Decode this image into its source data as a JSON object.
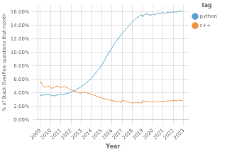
{
  "chart_data": {
    "type": "line",
    "xlabel": "Year",
    "ylabel": "% of Stack Overflow questions that month",
    "legend_title": "Tag",
    "legend": "right",
    "grid": true,
    "xlim": [
      2008.7,
      2023.5
    ],
    "xticks": [
      2009,
      2010,
      2011,
      2012,
      2013,
      2014,
      2015,
      2016,
      2017,
      2018,
      2019,
      2020,
      2021,
      2022,
      2023
    ],
    "ylim": [
      0.0,
      0.17
    ],
    "yticks": [
      {
        "value": 0.0,
        "label": "0.00%"
      },
      {
        "value": 0.02,
        "label": "2.00%"
      },
      {
        "value": 0.04,
        "label": "4.00%"
      },
      {
        "value": 0.06,
        "label": "6.00%"
      },
      {
        "value": 0.08,
        "label": "8.00%"
      },
      {
        "value": 0.1,
        "label": "10.00%"
      },
      {
        "value": 0.12,
        "label": "12.00%"
      },
      {
        "value": 0.14,
        "label": "14.00%"
      },
      {
        "value": 0.16,
        "label": "16.00%"
      }
    ],
    "x": [
      2009,
      2009.0833333333333,
      2009.1666666666667,
      2009.25,
      2009.3333333333333,
      2009.4166666666667,
      2009.5,
      2009.5833333333333,
      2009.6666666666667,
      2009.75,
      2009.8333333333333,
      2009.9166666666667,
      2010,
      2010.0833333333333,
      2010.1666666666667,
      2010.25,
      2010.3333333333333,
      2010.4166666666667,
      2010.5,
      2010.5833333333333,
      2010.6666666666667,
      2010.75,
      2010.8333333333333,
      2010.9166666666667,
      2011,
      2011.0833333333333,
      2011.1666666666667,
      2011.25,
      2011.3333333333333,
      2011.4166666666667,
      2011.5,
      2011.5833333333333,
      2011.6666666666667,
      2011.75,
      2011.8333333333333,
      2011.9166666666667,
      2012,
      2012.0833333333333,
      2012.1666666666667,
      2012.25,
      2012.3333333333333,
      2012.4166666666667,
      2012.5,
      2012.5833333333333,
      2012.6666666666667,
      2012.75,
      2012.8333333333333,
      2012.9166666666667,
      2013,
      2013.0833333333333,
      2013.1666666666667,
      2013.25,
      2013.3333333333333,
      2013.4166666666667,
      2013.5,
      2013.5833333333333,
      2013.6666666666667,
      2013.75,
      2013.8333333333333,
      2013.9166666666667,
      2014,
      2014.0833333333333,
      2014.1666666666667,
      2014.25,
      2014.3333333333333,
      2014.4166666666667,
      2014.5,
      2014.5833333333333,
      2014.6666666666667,
      2014.75,
      2014.8333333333333,
      2014.9166666666667,
      2015,
      2015.0833333333333,
      2015.1666666666667,
      2015.25,
      2015.3333333333333,
      2015.4166666666667,
      2015.5,
      2015.5833333333333,
      2015.6666666666667,
      2015.75,
      2015.8333333333333,
      2015.9166666666667,
      2016,
      2016.0833333333333,
      2016.1666666666667,
      2016.25,
      2016.3333333333333,
      2016.4166666666667,
      2016.5,
      2016.5833333333333,
      2016.6666666666667,
      2016.75,
      2016.8333333333333,
      2016.9166666666667,
      2017,
      2017.0833333333333,
      2017.1666666666667,
      2017.25,
      2017.3333333333333,
      2017.4166666666667,
      2017.5,
      2017.5833333333333,
      2017.6666666666667,
      2017.75,
      2017.8333333333333,
      2017.9166666666667,
      2018,
      2018.0833333333333,
      2018.1666666666667,
      2018.25,
      2018.3333333333333,
      2018.4166666666667,
      2018.5,
      2018.5833333333333,
      2018.6666666666667,
      2018.75,
      2018.8333333333333,
      2018.9166666666667,
      2019,
      2019.0833333333333,
      2019.1666666666667,
      2019.25,
      2019.3333333333333,
      2019.4166666666667,
      2019.5,
      2019.5833333333333,
      2019.6666666666667,
      2019.75,
      2019.8333333333333,
      2019.9166666666667,
      2020,
      2020.0833333333333,
      2020.1666666666667,
      2020.25,
      2020.3333333333333,
      2020.4166666666667,
      2020.5,
      2020.5833333333333,
      2020.6666666666667,
      2020.75,
      2020.8333333333333,
      2020.9166666666667,
      2021,
      2021.0833333333333,
      2021.1666666666667,
      2021.25,
      2021.3333333333333,
      2021.4166666666667,
      2021.5,
      2021.5833333333333,
      2021.6666666666667,
      2021.75,
      2021.8333333333333,
      2021.9166666666667,
      2022,
      2022.0833333333333,
      2022.1666666666667,
      2022.25,
      2022.3333333333333,
      2022.4166666666667,
      2022.5,
      2022.5833333333333,
      2022.6666666666667,
      2022.75,
      2022.8333333333333,
      2022.9166666666667
    ],
    "series": [
      {
        "name": "python",
        "color": "#5BA3CB",
        "values": [
          0.037,
          0.0365,
          0.036,
          0.0368,
          0.0372,
          0.0368,
          0.0375,
          0.038,
          0.0385,
          0.0378,
          0.0372,
          0.0368,
          0.0372,
          0.0365,
          0.0358,
          0.0362,
          0.0355,
          0.036,
          0.0358,
          0.0365,
          0.037,
          0.0375,
          0.038,
          0.0375,
          0.0378,
          0.0372,
          0.0375,
          0.038,
          0.0385,
          0.0382,
          0.0388,
          0.0392,
          0.0395,
          0.0398,
          0.0402,
          0.0408,
          0.0412,
          0.0418,
          0.0422,
          0.0428,
          0.0435,
          0.044,
          0.0448,
          0.0455,
          0.0462,
          0.047,
          0.0478,
          0.0485,
          0.0492,
          0.05,
          0.051,
          0.052,
          0.0532,
          0.0542,
          0.0552,
          0.0562,
          0.0572,
          0.0585,
          0.0595,
          0.0608,
          0.0622,
          0.0638,
          0.0652,
          0.0668,
          0.0682,
          0.0698,
          0.0715,
          0.073,
          0.0748,
          0.0762,
          0.0778,
          0.0795,
          0.0812,
          0.0832,
          0.0852,
          0.0875,
          0.0898,
          0.092,
          0.0945,
          0.0965,
          0.0988,
          0.1008,
          0.1028,
          0.1048,
          0.1068,
          0.1088,
          0.1108,
          0.1128,
          0.1148,
          0.1165,
          0.1182,
          0.1198,
          0.1215,
          0.1232,
          0.1248,
          0.1265,
          0.1278,
          0.1292,
          0.1308,
          0.1325,
          0.134,
          0.1355,
          0.1368,
          0.1382,
          0.1395,
          0.1408,
          0.142,
          0.1435,
          0.1448,
          0.1462,
          0.1475,
          0.1488,
          0.1498,
          0.1508,
          0.1518,
          0.1528,
          0.1538,
          0.1545,
          0.1552,
          0.1558,
          0.1525,
          0.1548,
          0.1555,
          0.1562,
          0.1568,
          0.1575,
          0.1555,
          0.1562,
          0.1555,
          0.1548,
          0.1555,
          0.1562,
          0.1568,
          0.1562,
          0.1555,
          0.1562,
          0.1568,
          0.1575,
          0.1582,
          0.1578,
          0.1572,
          0.1578,
          0.1582,
          0.1585,
          0.1588,
          0.1582,
          0.1578,
          0.1582,
          0.1588,
          0.1592,
          0.1595,
          0.159,
          0.1585,
          0.159,
          0.1595,
          0.16,
          0.1598,
          0.1595,
          0.16,
          0.1598,
          0.1595,
          0.16,
          0.1605,
          0.161,
          0.1608,
          0.1612,
          0.1615,
          0.1612
        ]
      },
      {
        "name": "c++",
        "color": "#F0923E",
        "values": [
          0.0575,
          0.0555,
          0.053,
          0.051,
          0.0495,
          0.0488,
          0.0482,
          0.049,
          0.0498,
          0.0502,
          0.0495,
          0.0488,
          0.048,
          0.0472,
          0.0468,
          0.0475,
          0.048,
          0.0488,
          0.0492,
          0.0498,
          0.0502,
          0.0498,
          0.0492,
          0.0485,
          0.0478,
          0.0482,
          0.049,
          0.0495,
          0.0498,
          0.0492,
          0.0485,
          0.0478,
          0.0472,
          0.0465,
          0.0458,
          0.0452,
          0.0445,
          0.044,
          0.0435,
          0.0432,
          0.0428,
          0.0422,
          0.0418,
          0.0415,
          0.041,
          0.0405,
          0.04,
          0.0398,
          0.0395,
          0.04,
          0.0405,
          0.0408,
          0.041,
          0.0405,
          0.04,
          0.0398,
          0.0395,
          0.0392,
          0.0388,
          0.0385,
          0.038,
          0.0378,
          0.0372,
          0.0368,
          0.0362,
          0.0358,
          0.0352,
          0.0348,
          0.0342,
          0.0338,
          0.0335,
          0.033,
          0.0325,
          0.0322,
          0.0318,
          0.0315,
          0.031,
          0.0308,
          0.0305,
          0.03,
          0.0298,
          0.0295,
          0.0292,
          0.029,
          0.0288,
          0.0285,
          0.0282,
          0.028,
          0.0278,
          0.0275,
          0.0272,
          0.027,
          0.0268,
          0.0265,
          0.0262,
          0.026,
          0.0295,
          0.029,
          0.0285,
          0.0282,
          0.0278,
          0.0275,
          0.0272,
          0.0268,
          0.0265,
          0.0262,
          0.0258,
          0.0255,
          0.0252,
          0.025,
          0.0252,
          0.0255,
          0.0258,
          0.0255,
          0.0252,
          0.0255,
          0.0258,
          0.0255,
          0.0252,
          0.025,
          0.0285,
          0.0282,
          0.0278,
          0.0275,
          0.0272,
          0.0268,
          0.0272,
          0.0268,
          0.0265,
          0.0262,
          0.0265,
          0.0268,
          0.0272,
          0.0268,
          0.0265,
          0.0262,
          0.0265,
          0.0268,
          0.0272,
          0.0268,
          0.0265,
          0.0268,
          0.0272,
          0.0275,
          0.0278,
          0.0275,
          0.0272,
          0.0275,
          0.0278,
          0.0282,
          0.0285,
          0.0282,
          0.0278,
          0.0282,
          0.0285,
          0.0288,
          0.029,
          0.0285,
          0.0288,
          0.0285,
          0.0282,
          0.0285,
          0.029,
          0.0292,
          0.029,
          0.0285,
          0.0288,
          0.0285
        ]
      }
    ]
  }
}
